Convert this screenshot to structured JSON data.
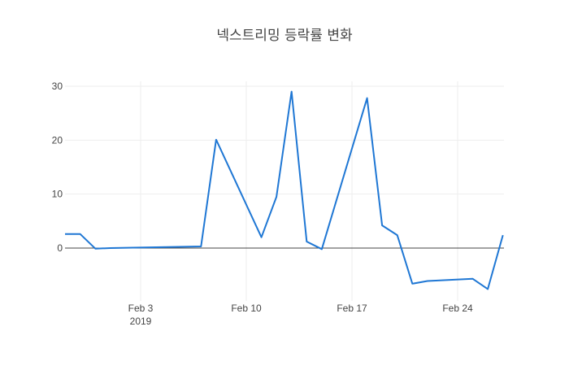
{
  "chart_data": {
    "type": "line",
    "title": "넥스트리밍 등락률 변화",
    "xlabel": "",
    "ylabel": "",
    "grid": true,
    "legend": "none",
    "x_range": [
      "2019-01-28",
      "2019-02-26"
    ],
    "y_range": [
      -9,
      31
    ],
    "x_ticks": [
      {
        "date": "2019-02-03",
        "label": "Feb 3",
        "sublabel": "2019"
      },
      {
        "date": "2019-02-10",
        "label": "Feb 10",
        "sublabel": ""
      },
      {
        "date": "2019-02-17",
        "label": "Feb 17",
        "sublabel": ""
      },
      {
        "date": "2019-02-24",
        "label": "Feb 24",
        "sublabel": ""
      }
    ],
    "y_ticks": [
      0,
      10,
      20,
      30
    ],
    "series": [
      {
        "color": "#1f77d4",
        "x": [
          "2019-01-28",
          "2019-01-29",
          "2019-01-30",
          "2019-01-31",
          "2019-02-01",
          "2019-02-07",
          "2019-02-08",
          "2019-02-11",
          "2019-02-12",
          "2019-02-13",
          "2019-02-14",
          "2019-02-15",
          "2019-02-18",
          "2019-02-19",
          "2019-02-20",
          "2019-02-21",
          "2019-02-22",
          "2019-02-25",
          "2019-02-26",
          "2019-02-27"
        ],
        "y": [
          2.6,
          2.6,
          2.6,
          -0.1,
          0.0,
          0.3,
          20.1,
          2.0,
          9.5,
          29.0,
          1.2,
          -0.2,
          27.8,
          4.2,
          2.4,
          -6.6,
          -6.1,
          -5.7,
          -7.6,
          2.4
        ]
      }
    ]
  }
}
